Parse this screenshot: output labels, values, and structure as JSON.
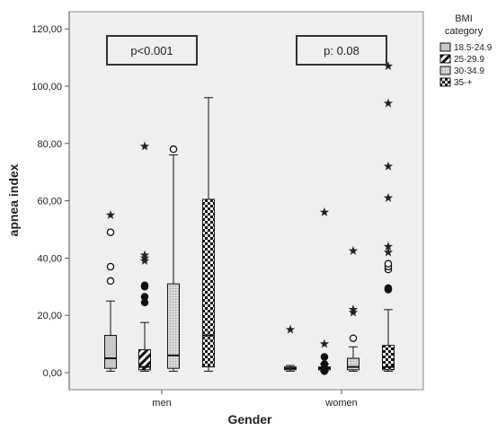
{
  "chart_data": {
    "type": "box",
    "xlabel": "Gender",
    "ylabel": "apnea index",
    "ylim": [
      0,
      125
    ],
    "yticks": [
      0,
      20,
      40,
      60,
      80,
      100,
      120
    ],
    "ytick_labels": [
      "0,00",
      "20,00",
      "40,00",
      "60,00",
      "80,00",
      "100,00",
      "120,00"
    ],
    "categories": [
      "men",
      "women"
    ],
    "annotations": [
      "p<0.001",
      "p: 0.08"
    ],
    "legend": {
      "title_lines": [
        "BMI",
        "category"
      ],
      "placement": "right"
    },
    "series": [
      {
        "name": "18.5-24.9",
        "pattern": "light-gray",
        "boxes": [
          {
            "min": 0.5,
            "q1": 1.5,
            "median": 5,
            "q3": 13,
            "max": 25,
            "outliers_circle": [
              32,
              37,
              49
            ],
            "outliers_star": [
              55
            ]
          },
          {
            "min": 0.5,
            "q1": 1,
            "median": 1.5,
            "q3": 2,
            "max": 2.5,
            "outliers_circle": [],
            "outliers_star": [
              15
            ]
          }
        ]
      },
      {
        "name": "25-29.9",
        "pattern": "diagonal-stripes",
        "boxes": [
          {
            "min": 0.5,
            "q1": 1,
            "median": 2,
            "q3": 8,
            "max": 17.5,
            "outliers_circle": [
              24.5,
              26.5,
              30,
              30.5
            ],
            "outliers_star": [
              39,
              40,
              41,
              79
            ]
          },
          {
            "min": 0.5,
            "q1": 1,
            "median": 1.5,
            "q3": 2,
            "max": 3,
            "outliers_circle": [
              0.5,
              1.5,
              3,
              5.5
            ],
            "outliers_star": [
              10,
              56
            ]
          }
        ]
      },
      {
        "name": "30-34.9",
        "pattern": "dotted-gray",
        "boxes": [
          {
            "min": 0.5,
            "q1": 1.5,
            "median": 6,
            "q3": 31,
            "max": 76,
            "outliers_circle": [
              78
            ],
            "outliers_star": []
          },
          {
            "min": 0.5,
            "q1": 1,
            "median": 2,
            "q3": 5,
            "max": 9,
            "outliers_circle": [
              12
            ],
            "outliers_star": [
              21,
              22,
              42.5
            ]
          }
        ]
      },
      {
        "name": "35-+",
        "pattern": "checkered",
        "boxes": [
          {
            "min": 0.5,
            "q1": 2,
            "median": 13,
            "q3": 60.5,
            "max": 96,
            "outliers_circle": [],
            "outliers_star": []
          },
          {
            "min": 0.5,
            "q1": 1,
            "median": 2,
            "q3": 9.5,
            "max": 22,
            "outliers_circle": [
              29,
              29.5,
              36,
              37,
              38
            ],
            "outliers_star": [
              42,
              44,
              61,
              72,
              94,
              107
            ]
          }
        ]
      }
    ]
  }
}
